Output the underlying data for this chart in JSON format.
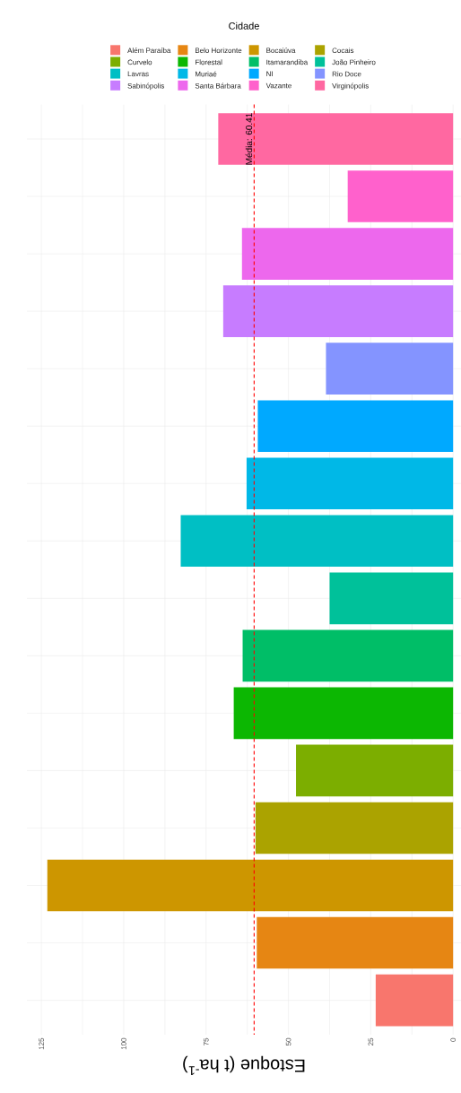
{
  "chart_data": {
    "type": "bar",
    "orientation": "horizontal",
    "xlabel": "Estoque (t ha$^{-1}$)",
    "legend_title": "Cidade",
    "categories": [
      null,
      null,
      null,
      null,
      null,
      null,
      null,
      null,
      null,
      null,
      null,
      null,
      null,
      null,
      null,
      null
    ],
    "series": [
      {
        "name": "Além Paraíba",
        "color": "#F8766D",
        "values": [
          null,
          null,
          null,
          null,
          null,
          null,
          null,
          null,
          null,
          null,
          null,
          null,
          null,
          null,
          null,
          23.5
        ]
      },
      {
        "name": "Belo Horizonte",
        "color": "#E68613",
        "values": [
          null,
          null,
          null,
          null,
          null,
          null,
          null,
          null,
          null,
          null,
          null,
          null,
          null,
          null,
          59.6,
          null
        ]
      },
      {
        "name": "Bocaiúva",
        "color": "#CD9600",
        "values": [
          null,
          null,
          null,
          null,
          null,
          null,
          null,
          null,
          null,
          null,
          null,
          null,
          null,
          123.2,
          null,
          null
        ]
      },
      {
        "name": "Cocais",
        "color": "#ABA300",
        "values": [
          null,
          null,
          null,
          null,
          null,
          null,
          null,
          null,
          null,
          null,
          null,
          null,
          60.0,
          null,
          null,
          null
        ]
      },
      {
        "name": "Curvelo",
        "color": "#7CAE00",
        "values": [
          null,
          null,
          null,
          null,
          null,
          null,
          null,
          null,
          null,
          null,
          null,
          47.7,
          null,
          null,
          null,
          null
        ]
      },
      {
        "name": "Florestal",
        "color": "#0CB702",
        "values": [
          null,
          null,
          null,
          null,
          null,
          null,
          null,
          null,
          null,
          null,
          66.6,
          null,
          null,
          null,
          null,
          null
        ]
      },
      {
        "name": "Itamarandiba",
        "color": "#00BE67",
        "values": [
          null,
          null,
          null,
          null,
          null,
          null,
          null,
          null,
          null,
          63.9,
          null,
          null,
          null,
          null,
          null,
          null
        ]
      },
      {
        "name": "João Pinheiro",
        "color": "#00C19A",
        "values": [
          null,
          null,
          null,
          null,
          null,
          null,
          null,
          null,
          37.5,
          null,
          null,
          null,
          null,
          null,
          null,
          null
        ]
      },
      {
        "name": "Lavras",
        "color": "#00BFC4",
        "values": [
          null,
          null,
          null,
          null,
          null,
          null,
          null,
          82.7,
          null,
          null,
          null,
          null,
          null,
          null,
          null,
          null
        ]
      },
      {
        "name": "Muriaé",
        "color": "#00B8E7",
        "values": [
          null,
          null,
          null,
          null,
          null,
          null,
          62.7,
          null,
          null,
          null,
          null,
          null,
          null,
          null,
          null,
          null
        ]
      },
      {
        "name": "NI",
        "color": "#00A9FF",
        "values": [
          null,
          null,
          null,
          null,
          null,
          59.3,
          null,
          null,
          null,
          null,
          null,
          null,
          null,
          null,
          null,
          null
        ]
      },
      {
        "name": "Rio Doce",
        "color": "#8494FF",
        "values": [
          null,
          null,
          null,
          null,
          38.6,
          null,
          null,
          null,
          null,
          null,
          null,
          null,
          null,
          null,
          null,
          null
        ]
      },
      {
        "name": "Sabinópolis",
        "color": "#C77CFF",
        "values": [
          null,
          null,
          null,
          69.8,
          null,
          null,
          null,
          null,
          null,
          null,
          null,
          null,
          null,
          null,
          null,
          null
        ]
      },
      {
        "name": "Santa Bárbara",
        "color": "#ED68ED",
        "values": [
          null,
          null,
          64.1,
          null,
          null,
          null,
          null,
          null,
          null,
          null,
          null,
          null,
          null,
          null,
          null,
          null
        ]
      },
      {
        "name": "Vazante",
        "color": "#FF61CC",
        "values": [
          null,
          32.0,
          null,
          null,
          null,
          null,
          null,
          null,
          null,
          null,
          null,
          null,
          null,
          null,
          null,
          null
        ]
      },
      {
        "name": "Virginópolis",
        "color": "#FF68A1",
        "values": [
          71.3,
          null,
          null,
          null,
          null,
          null,
          null,
          null,
          null,
          null,
          null,
          null,
          null,
          null,
          null,
          null
        ]
      }
    ],
    "xlim": [
      129.4,
      -2.4
    ],
    "xticks": [
      0,
      25,
      50,
      75,
      100,
      125
    ],
    "grid": true,
    "legend": "top",
    "ref_lines": [
      {
        "axis": "x",
        "value": 60.41,
        "label": "Média: 60.41",
        "color": "#FF0000",
        "line_style": "dashed"
      }
    ]
  }
}
